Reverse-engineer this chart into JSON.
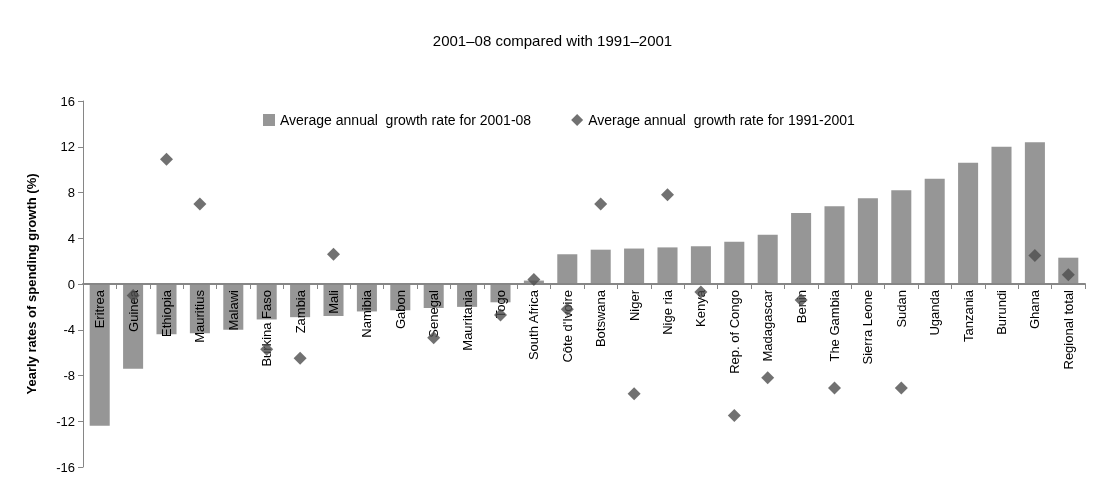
{
  "chart_data": {
    "type": "bar",
    "title": "2001–08 compared with 1991–2001",
    "ylabel": "Yearly rates of spending growth (%)",
    "categories": [
      "Eritrea",
      "Guinea",
      "Ethiopia",
      "Mauritius",
      "Malawi",
      "Burkina Faso",
      "Zambia",
      "Mali",
      "Namibia",
      "Gabon",
      "Senegal",
      "Mauritania",
      "Togo",
      "South Africa",
      "Côte d'Ivoire",
      "Botswana",
      "Niger",
      "Nige ria",
      "Kenya",
      "Rep. of Congo",
      "Madagascar",
      "Benin",
      "The Gambia",
      "Sierra Leone",
      "Sudan",
      "Uganda",
      "Tanzania",
      "Burundi",
      "Ghana",
      "Regional total"
    ],
    "series": [
      {
        "name": "Average annual  growth rate for 2001-08",
        "color": "#969696",
        "values": [
          -12.4,
          -7.4,
          -4.4,
          -4.3,
          -4.0,
          -3.1,
          -2.9,
          -2.8,
          -2.4,
          -2.3,
          -2.1,
          -2.0,
          -1.6,
          0.3,
          2.6,
          3.0,
          3.1,
          3.2,
          3.3,
          3.7,
          4.3,
          6.2,
          6.8,
          7.5,
          8.2,
          9.2,
          10.6,
          12.0,
          12.4,
          2.3
        ]
      },
      {
        "name": "Average annual  growth rate for 1991-2001",
        "type": "scatter",
        "marker": "diamond",
        "color": "#4d4d4d",
        "values": [
          null,
          -1.0,
          10.9,
          7.0,
          null,
          -5.7,
          -6.5,
          2.6,
          null,
          null,
          -4.7,
          null,
          -2.7,
          0.4,
          -2.2,
          7.0,
          -9.6,
          7.8,
          -0.7,
          -11.5,
          -8.2,
          -1.4,
          -9.1,
          null,
          -9.1,
          null,
          null,
          null,
          2.5,
          0.8
        ]
      }
    ],
    "ylim": [
      -16,
      16
    ],
    "yticks": [
      -16,
      -12,
      -8,
      -4,
      0,
      4,
      8,
      12,
      16
    ],
    "legend": "top"
  }
}
